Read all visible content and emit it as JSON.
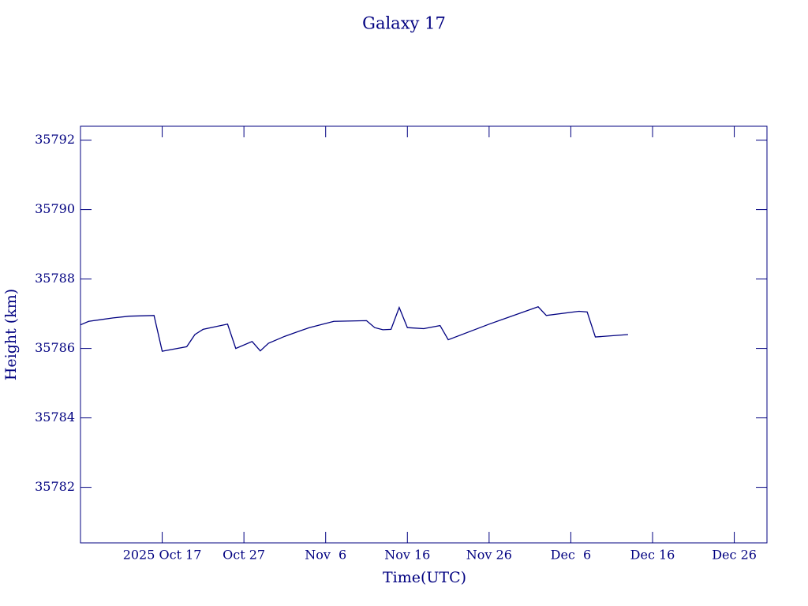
{
  "chart_data": {
    "type": "line",
    "title": "Galaxy 17",
    "x_label": "Time(UTC)",
    "y_label": "Height (km)",
    "color": "#000080",
    "x": [
      "2025-10-07",
      "2025-10-08",
      "2025-10-11",
      "2025-10-13",
      "2025-10-16",
      "2025-10-17",
      "2025-10-20",
      "2025-10-21",
      "2025-10-22",
      "2025-10-25",
      "2025-10-26",
      "2025-10-28",
      "2025-10-29",
      "2025-10-30",
      "2025-11-01",
      "2025-11-04",
      "2025-11-07",
      "2025-11-11",
      "2025-11-12",
      "2025-11-13",
      "2025-11-14",
      "2025-11-15",
      "2025-11-16",
      "2025-11-18",
      "2025-11-20",
      "2025-11-21",
      "2025-11-26",
      "2025-12-02",
      "2025-12-03",
      "2025-12-07",
      "2025-12-08",
      "2025-12-09",
      "2025-12-13"
    ],
    "series": [
      {
        "name": "Height",
        "color": "#000080",
        "values": [
          35786.68,
          35786.78,
          35786.88,
          35786.93,
          35786.95,
          35785.92,
          35786.05,
          35786.4,
          35786.55,
          35786.7,
          35786.0,
          35786.2,
          35785.93,
          35786.15,
          35786.35,
          35786.6,
          35786.78,
          35786.8,
          35786.6,
          35786.54,
          35786.55,
          35787.18,
          35786.6,
          35786.57,
          35786.66,
          35786.25,
          35786.7,
          35787.2,
          35786.95,
          35787.07,
          35787.05,
          35786.33,
          35786.4
        ]
      }
    ],
    "xlim": [
      "2025-10-07",
      "2025-12-30"
    ],
    "xticks": [
      {
        "value": "2025-10-17",
        "label": "2025 Oct 17"
      },
      {
        "value": "2025-10-27",
        "label": "Oct 27"
      },
      {
        "value": "2025-11-06",
        "label": "Nov  6"
      },
      {
        "value": "2025-11-16",
        "label": "Nov 16"
      },
      {
        "value": "2025-11-26",
        "label": "Nov 26"
      },
      {
        "value": "2025-12-06",
        "label": "Dec  6"
      },
      {
        "value": "2025-12-16",
        "label": "Dec 16"
      },
      {
        "value": "2025-12-26",
        "label": "Dec 26"
      }
    ],
    "ylim": [
      35780.4,
      35792.4
    ],
    "yticks": [
      35782,
      35784,
      35786,
      35788,
      35790,
      35792
    ]
  }
}
